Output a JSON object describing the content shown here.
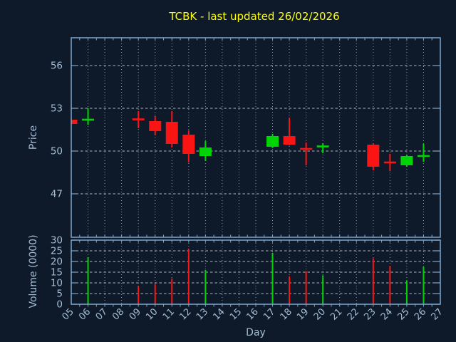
{
  "title": "TCBK - last updated 26/02/2026",
  "colors": {
    "background": "#0e1a2a",
    "spine": "#7fa6cb",
    "tick_label": "#a4bed6",
    "title": "#ffff00",
    "up": "#00d404",
    "down": "#fa1414",
    "grid_horizontal": "#ccd3da",
    "grid_vertical": "#97a6b4"
  },
  "chart_data": [
    {
      "type": "candlestick",
      "title": "TCBK - last updated 26/02/2026",
      "xlabel": "Day",
      "ylabel": "Price",
      "xlim": [
        5,
        27
      ],
      "ylim": [
        43.95,
        57.95
      ],
      "y_ticks": [
        47,
        50,
        53,
        56
      ],
      "grid": true,
      "legend": "none",
      "candles": [
        {
          "day": 5,
          "label": "05",
          "open": 52.2,
          "high": 52.25,
          "low": 51.85,
          "close": 51.9,
          "dir": "down"
        },
        {
          "day": 6,
          "label": "06",
          "open": 52.2,
          "high": 53.0,
          "low": 51.85,
          "close": 52.2,
          "dir": "up"
        },
        {
          "day": 9,
          "label": "09",
          "open": 52.25,
          "high": 52.8,
          "low": 51.6,
          "close": 52.2,
          "dir": "down"
        },
        {
          "day": 10,
          "label": "10",
          "open": 52.1,
          "high": 52.45,
          "low": 51.1,
          "close": 51.4,
          "dir": "down"
        },
        {
          "day": 11,
          "label": "11",
          "open": 52.05,
          "high": 52.8,
          "low": 50.25,
          "close": 50.5,
          "dir": "down"
        },
        {
          "day": 12,
          "label": "12",
          "open": 51.15,
          "high": 51.45,
          "low": 49.2,
          "close": 49.8,
          "dir": "down"
        },
        {
          "day": 13,
          "label": "13",
          "open": 49.65,
          "high": 50.7,
          "low": 49.3,
          "close": 50.25,
          "dir": "up"
        },
        {
          "day": 17,
          "label": "17",
          "open": 50.3,
          "high": 51.2,
          "low": 50.2,
          "close": 51.05,
          "dir": "up"
        },
        {
          "day": 18,
          "label": "18",
          "open": 51.05,
          "high": 52.35,
          "low": 50.4,
          "close": 50.45,
          "dir": "down"
        },
        {
          "day": 19,
          "label": "19",
          "open": 50.2,
          "high": 50.6,
          "low": 49.0,
          "close": 50.1,
          "dir": "down"
        },
        {
          "day": 20,
          "label": "20",
          "open": 50.3,
          "high": 50.55,
          "low": 49.85,
          "close": 50.35,
          "dir": "up"
        },
        {
          "day": 23,
          "label": "23",
          "open": 50.45,
          "high": 50.5,
          "low": 48.65,
          "close": 48.9,
          "dir": "down"
        },
        {
          "day": 24,
          "label": "24",
          "open": 49.25,
          "high": 49.8,
          "low": 48.6,
          "close": 49.15,
          "dir": "down"
        },
        {
          "day": 25,
          "label": "25",
          "open": 49.0,
          "high": 49.75,
          "low": 48.9,
          "close": 49.65,
          "dir": "up"
        },
        {
          "day": 26,
          "label": "26",
          "open": 49.6,
          "high": 50.5,
          "low": 49.25,
          "close": 49.7,
          "dir": "up"
        }
      ]
    },
    {
      "type": "bar",
      "xlabel": "Day",
      "ylabel": "Volume (0000)",
      "xlim": [
        5,
        27
      ],
      "ylim": [
        0,
        30
      ],
      "y_ticks": [
        0,
        5,
        10,
        15,
        20,
        25,
        30
      ],
      "x_tick_labels": [
        "05",
        "06",
        "07",
        "08",
        "09",
        "10",
        "11",
        "12",
        "13",
        "14",
        "15",
        "16",
        "17",
        "18",
        "19",
        "20",
        "21",
        "22",
        "23",
        "24",
        "25",
        "26",
        "27"
      ],
      "grid": true,
      "bars": [
        {
          "day": 6,
          "label": "06",
          "value": 22,
          "dir": "up"
        },
        {
          "day": 9,
          "label": "09",
          "value": 8.5,
          "dir": "down"
        },
        {
          "day": 10,
          "label": "10",
          "value": 9.5,
          "dir": "down"
        },
        {
          "day": 11,
          "label": "11",
          "value": 12,
          "dir": "down"
        },
        {
          "day": 12,
          "label": "12",
          "value": 26,
          "dir": "down"
        },
        {
          "day": 13,
          "label": "13",
          "value": 16,
          "dir": "up"
        },
        {
          "day": 17,
          "label": "17",
          "value": 24,
          "dir": "up"
        },
        {
          "day": 18,
          "label": "18",
          "value": 13,
          "dir": "down"
        },
        {
          "day": 19,
          "label": "19",
          "value": 15.5,
          "dir": "down"
        },
        {
          "day": 20,
          "label": "20",
          "value": 13.5,
          "dir": "up"
        },
        {
          "day": 23,
          "label": "23",
          "value": 21.5,
          "dir": "down"
        },
        {
          "day": 24,
          "label": "24",
          "value": 18,
          "dir": "down"
        },
        {
          "day": 25,
          "label": "25",
          "value": 11,
          "dir": "up"
        },
        {
          "day": 26,
          "label": "26",
          "value": 17.5,
          "dir": "up"
        }
      ]
    }
  ]
}
